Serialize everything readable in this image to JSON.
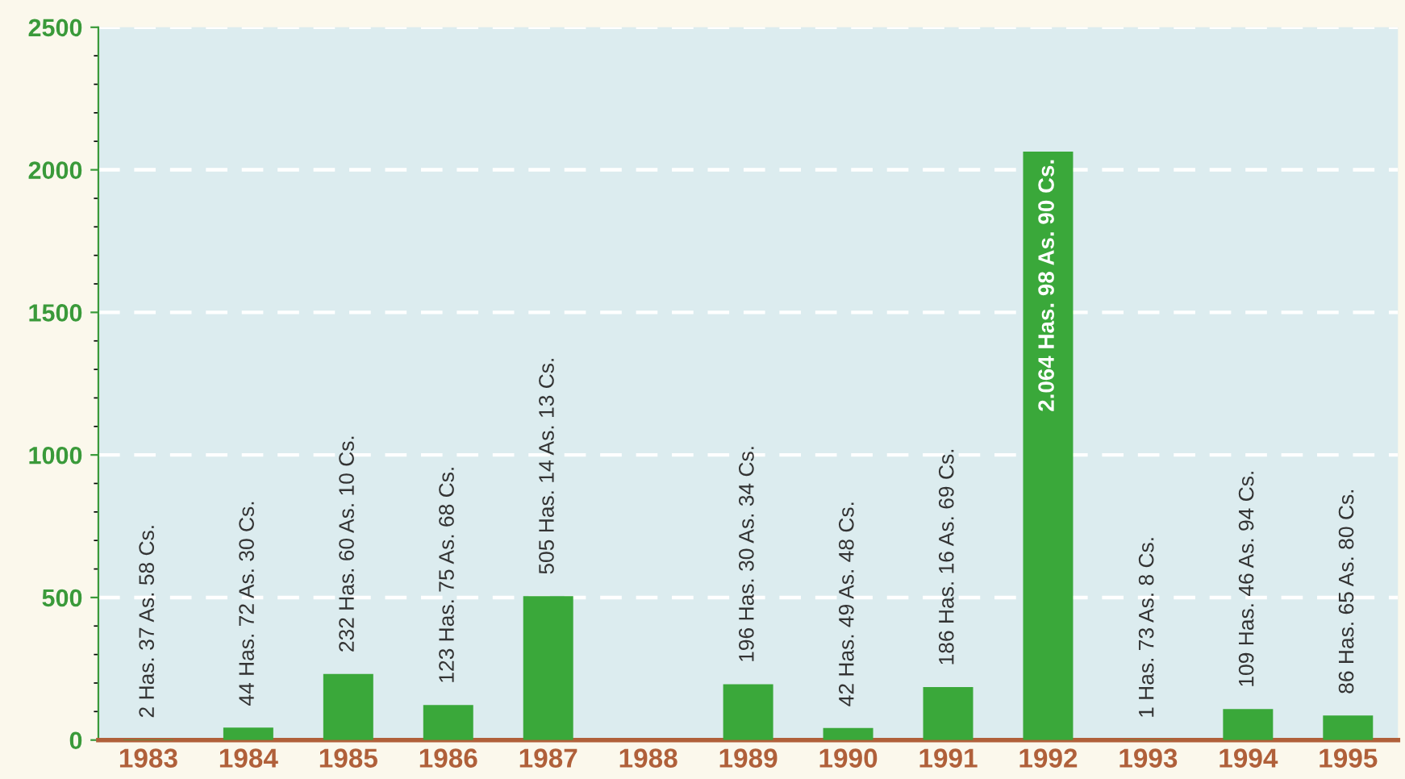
{
  "chart_data": {
    "type": "bar",
    "categories": [
      "1983",
      "1984",
      "1985",
      "1986",
      "1987",
      "1988",
      "1989",
      "1990",
      "1991",
      "1992",
      "1993",
      "1994",
      "1995"
    ],
    "values": [
      2,
      44,
      232,
      123,
      505,
      null,
      196,
      42,
      186,
      2064,
      1,
      109,
      86
    ],
    "value_labels": [
      "2 Has. 37 As. 58 Cs.",
      "44 Has. 72 As. 30 Cs.",
      "232 Has. 60 As. 10 Cs.",
      "123 Has. 75 As. 68 Cs.",
      "505 Has. 14 As. 13 Cs.",
      null,
      "196 Has. 30 As. 34 Cs.",
      "42 Has. 49 As. 48 Cs.",
      "186 Has. 16 As. 69 Cs.",
      "2.064 Has. 98 As. 90 Cs.",
      "1 Has. 73 As. 8 Cs.",
      "109 Has. 46 As. 94 Cs.",
      "86 Has. 65 As. 80 Cs."
    ],
    "color": "#3aa83a",
    "ylim": [
      0,
      2500
    ],
    "yticks": [
      0,
      500,
      1000,
      1500,
      2000,
      2500
    ],
    "grid": "y",
    "line_style": "dashed"
  }
}
